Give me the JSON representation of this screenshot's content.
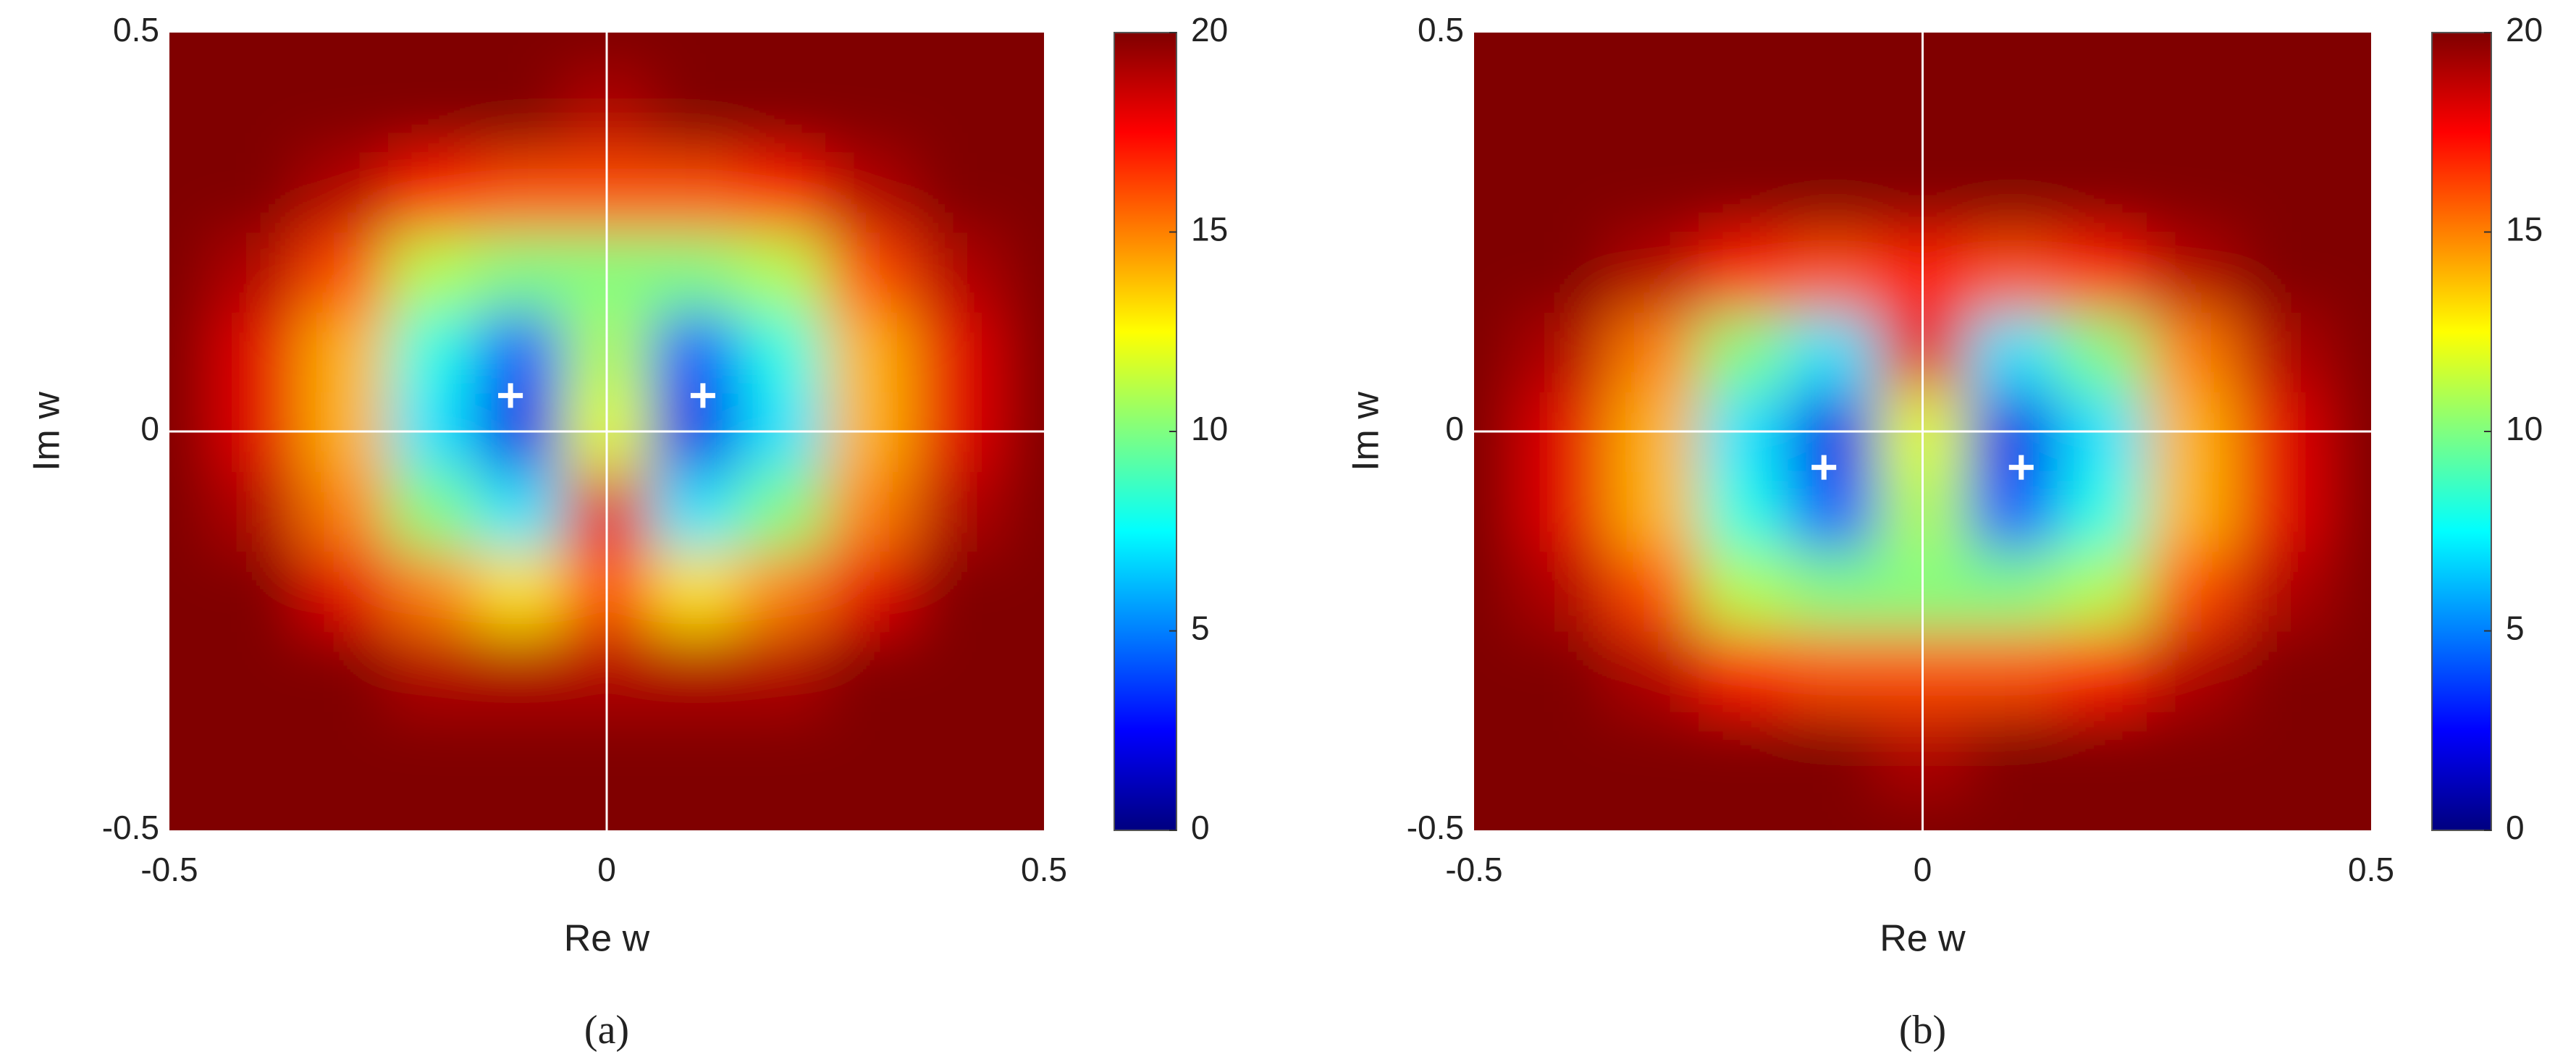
{
  "chart_data": [
    {
      "type": "heatmap",
      "label": "(a)",
      "xlabel": "Re w",
      "ylabel": "Im w",
      "xlim": [
        -0.5,
        0.5
      ],
      "ylim": [
        -0.5,
        0.5
      ],
      "xticks": [
        -0.5,
        0,
        0.5
      ],
      "yticks": [
        -0.5,
        0,
        0.5
      ],
      "colormap": "jet",
      "clim": [
        0,
        20
      ],
      "cticks": [
        0,
        5,
        10,
        15,
        20
      ],
      "x": [
        -0.5,
        -0.4,
        -0.3,
        -0.2,
        -0.1,
        0,
        0.1,
        0.2,
        0.3,
        0.4,
        0.5
      ],
      "y": [
        -0.5,
        -0.4,
        -0.3,
        -0.2,
        -0.1,
        0,
        0.1,
        0.2,
        0.3,
        0.4,
        0.5
      ],
      "z": [
        [
          20,
          20,
          20,
          20,
          20,
          20,
          20,
          20,
          20,
          20,
          20
        ],
        [
          20,
          20,
          20,
          20,
          20,
          20,
          20,
          20,
          20,
          20,
          20
        ],
        [
          20,
          20,
          20,
          19,
          19,
          19,
          19,
          19,
          20,
          20,
          20
        ],
        [
          20,
          20,
          18,
          15,
          13,
          16,
          13,
          15,
          18,
          20,
          20
        ],
        [
          20,
          19,
          15,
          10,
          7,
          18,
          7,
          10,
          15,
          19,
          20
        ],
        [
          20,
          18,
          14,
          7,
          2,
          12,
          2,
          7,
          14,
          18,
          20
        ],
        [
          20,
          18,
          14,
          8,
          4,
          11,
          4,
          8,
          14,
          18,
          20
        ],
        [
          20,
          19,
          16,
          11,
          10,
          10,
          10,
          11,
          16,
          19,
          20
        ],
        [
          20,
          20,
          19,
          17,
          16,
          16,
          16,
          17,
          19,
          20,
          20
        ],
        [
          20,
          20,
          20,
          20,
          20,
          19,
          20,
          20,
          20,
          20,
          20
        ],
        [
          20,
          20,
          20,
          20,
          20,
          20,
          20,
          20,
          20,
          20,
          20
        ]
      ],
      "markers": {
        "x": [
          -0.11,
          0.11
        ],
        "y": [
          0.045,
          0.045
        ],
        "color": "#ffffff"
      }
    },
    {
      "type": "heatmap",
      "label": "(b)",
      "xlabel": "Re w",
      "ylabel": "Im w",
      "xlim": [
        -0.5,
        0.5
      ],
      "ylim": [
        -0.5,
        0.5
      ],
      "xticks": [
        -0.5,
        0,
        0.5
      ],
      "yticks": [
        -0.5,
        0,
        0.5
      ],
      "colormap": "jet",
      "clim": [
        0,
        20
      ],
      "cticks": [
        0,
        5,
        10,
        15,
        20
      ],
      "x": [
        -0.5,
        -0.4,
        -0.3,
        -0.2,
        -0.1,
        0,
        0.1,
        0.2,
        0.3,
        0.4,
        0.5
      ],
      "y": [
        -0.5,
        -0.4,
        -0.3,
        -0.2,
        -0.1,
        0,
        0.1,
        0.2,
        0.3,
        0.4,
        0.5
      ],
      "z": [
        [
          20,
          20,
          20,
          20,
          20,
          20,
          20,
          20,
          20,
          20,
          20
        ],
        [
          20,
          20,
          20,
          20,
          20,
          19,
          20,
          20,
          20,
          20,
          20
        ],
        [
          20,
          20,
          19,
          17,
          16,
          16,
          16,
          17,
          19,
          20,
          20
        ],
        [
          20,
          19,
          16,
          11,
          10,
          10,
          10,
          11,
          16,
          19,
          20
        ],
        [
          20,
          18,
          14,
          8,
          4,
          11,
          4,
          8,
          14,
          18,
          20
        ],
        [
          20,
          18,
          14,
          7,
          2,
          12,
          2,
          7,
          14,
          18,
          20
        ],
        [
          20,
          19,
          15,
          10,
          7,
          18,
          7,
          10,
          15,
          19,
          20
        ],
        [
          20,
          20,
          19,
          17,
          16,
          17,
          16,
          17,
          19,
          20,
          20
        ],
        [
          20,
          20,
          20,
          20,
          20,
          20,
          20,
          20,
          20,
          20,
          20
        ],
        [
          20,
          20,
          20,
          20,
          20,
          20,
          20,
          20,
          20,
          20,
          20
        ],
        [
          20,
          20,
          20,
          20,
          20,
          20,
          20,
          20,
          20,
          20,
          20
        ]
      ],
      "markers": {
        "x": [
          -0.11,
          0.11
        ],
        "y": [
          -0.045,
          -0.045
        ],
        "color": "#ffffff"
      }
    }
  ]
}
